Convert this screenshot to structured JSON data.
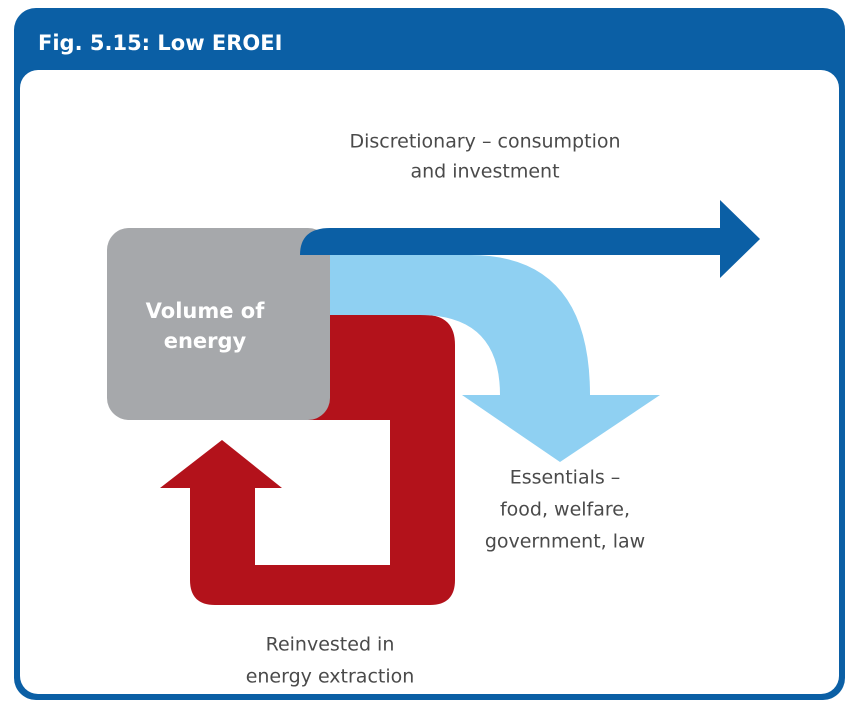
{
  "title": "Fig. 5.15: Low EROEI",
  "source": {
    "label": [
      "Volume of",
      "energy"
    ]
  },
  "flows": [
    {
      "label": [
        "Discretionary – consumption",
        "and investment"
      ]
    },
    {
      "label": [
        "Essentials –",
        "food, welfare,",
        "government, law"
      ]
    },
    {
      "label": [
        "Reinvested in",
        "energy extraction"
      ]
    }
  ]
}
